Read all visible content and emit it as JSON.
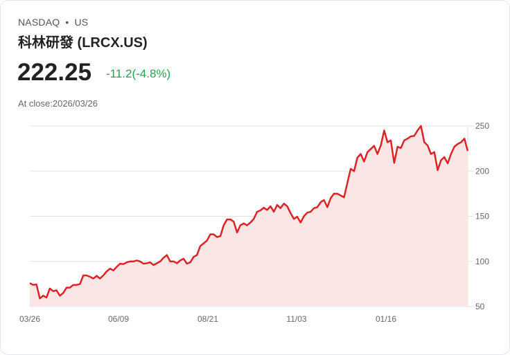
{
  "header": {
    "exchange": "NASDAQ",
    "separator": "•",
    "market": "US",
    "name": "科林研發 (LRCX.US)",
    "price": "222.25",
    "change": "-11.2(-4.8%)",
    "close_label": "At close:2026/03/26"
  },
  "colors": {
    "line": "#dd2226",
    "fill": "#fbe6e6",
    "change": "#1ea351",
    "grid": "#e2e2e2"
  },
  "chart_data": {
    "type": "area",
    "title": "",
    "xlabel": "",
    "ylabel": "",
    "ylim": [
      50,
      250
    ],
    "yticks": [
      50,
      100,
      150,
      200,
      250
    ],
    "xticks": [
      "03/26",
      "06/09",
      "08/21",
      "11/03",
      "01/16"
    ],
    "grid": true,
    "values": [
      76,
      74,
      74.5,
      59,
      62,
      60,
      70,
      67,
      68,
      62,
      65,
      71,
      71,
      74,
      74,
      75,
      84.5,
      84.5,
      83,
      81,
      84,
      81,
      84.5,
      89,
      92,
      90,
      94,
      97.5,
      97,
      99,
      100,
      100,
      101,
      100,
      97.5,
      98,
      99,
      96,
      98,
      100,
      104,
      107,
      100,
      100,
      98,
      101,
      103,
      97.5,
      99,
      105,
      107,
      117,
      120,
      123,
      130,
      130,
      127,
      128,
      140,
      146.5,
      146.5,
      144,
      132,
      140,
      142,
      140,
      143,
      147,
      155,
      156.5,
      159.5,
      157,
      161,
      155,
      162.5,
      159,
      164,
      161,
      153.5,
      147,
      149.5,
      143,
      150,
      154,
      155,
      159,
      160,
      165.5,
      168,
      160,
      170,
      175,
      175,
      173,
      171,
      187,
      202.5,
      200,
      215,
      219,
      210.5,
      221,
      224.5,
      228,
      219,
      228.5,
      245,
      232,
      234,
      209,
      227,
      225.5,
      234,
      236,
      238.5,
      239,
      245,
      250,
      232,
      228.5,
      219,
      221,
      201,
      212,
      215.5,
      208.5,
      219,
      227,
      230,
      232,
      236,
      222.25
    ]
  }
}
